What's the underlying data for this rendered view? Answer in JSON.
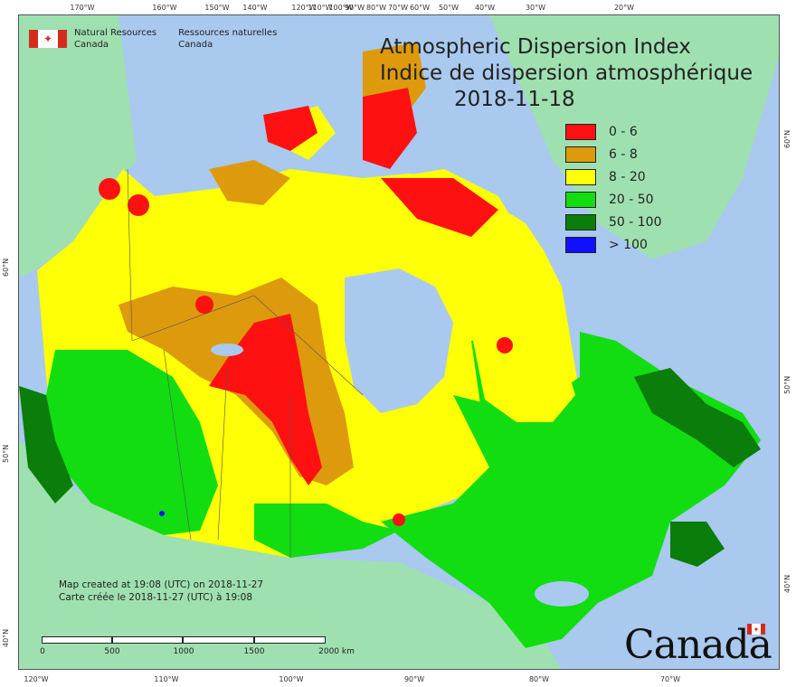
{
  "branding": {
    "org_en_line1": "Natural Resources",
    "org_en_line2": "Canada",
    "org_fr_line1": "Ressources naturelles",
    "org_fr_line2": "Canada",
    "wordmark": "Canada"
  },
  "title": {
    "en": "Atmospheric Dispersion Index",
    "fr": "Indice de dispersion atmosphérique",
    "date": "2018-11-18"
  },
  "legend": [
    {
      "label": "0 - 6",
      "color": "#ff1111"
    },
    {
      "label": "6 - 8",
      "color": "#dd9a0c"
    },
    {
      "label": "8 - 20",
      "color": "#ffff05"
    },
    {
      "label": "20 - 50",
      "color": "#11dd11"
    },
    {
      "label": "50 - 100",
      "color": "#0a7d0a"
    },
    {
      "label": "> 100",
      "color": "#1010ff"
    }
  ],
  "created": {
    "en": "Map created at 19:08 (UTC) on 2018-11-27",
    "fr": "Carte créée le 2018-11-27 (UTC) à 19:08"
  },
  "scale": {
    "labels": [
      "0",
      "500",
      "1000",
      "1500",
      "2000 km"
    ]
  },
  "ticks": {
    "top": [
      "170°W",
      "160°W",
      "150°W",
      "140°W",
      "120°W",
      "110°W",
      "100°W",
      "90°W",
      "80°W",
      "70°W",
      "60°W",
      "50°W",
      "40°W",
      "30°W",
      "20°W"
    ],
    "bottom": [
      "120°W",
      "110°W",
      "100°W",
      "90°W",
      "80°W",
      "70°W"
    ],
    "left": [
      "60°N",
      "50°N",
      "40°N"
    ],
    "right": [
      "60°N",
      "50°N",
      "40°N"
    ]
  },
  "colors": {
    "ocean": "#a9c9ee",
    "land_outside": "#9fe0b0"
  }
}
